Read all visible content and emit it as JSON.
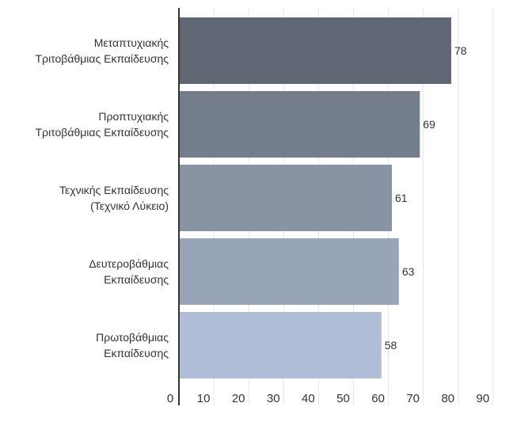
{
  "chart_data": {
    "type": "bar",
    "orientation": "horizontal",
    "categories": [
      [
        "Μεταπτυχιακής",
        "Τριτοβάθμιας Εκπαίδευσης"
      ],
      [
        "Προπτυχιακής",
        "Τριτοβάθμιας Εκπαίδευσης"
      ],
      [
        "Τεχνικής Εκπαίδευσης",
        "(Τεχνικό Λύκειο)"
      ],
      [
        "Δευτεροβάθμιας",
        "Εκπαίδευσης"
      ],
      [
        "Πρωτοβάθμιας",
        "Εκπαίδευσης"
      ]
    ],
    "values": [
      78,
      69,
      61,
      63,
      58
    ],
    "bar_colors": [
      "#5f6775",
      "#737d8c",
      "#8893a3",
      "#98a4b8",
      "#b0bdd6"
    ],
    "xlim": [
      0,
      90
    ],
    "xticks": [
      0,
      10,
      20,
      30,
      40,
      50,
      60,
      70,
      80,
      90
    ],
    "grid": "vertical",
    "legend": "none"
  }
}
